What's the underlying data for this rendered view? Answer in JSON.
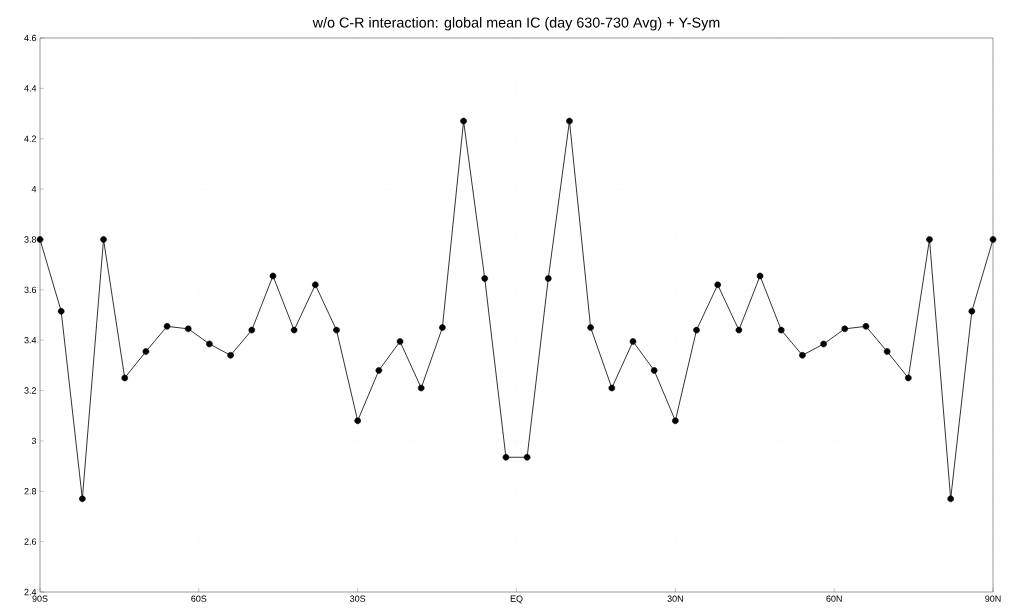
{
  "chart_data": {
    "type": "line",
    "title": "w/o C-R interaction: global mean IC (day 630-730 Avg) + Y-Sym",
    "x": [
      -90,
      -86,
      -82,
      -78,
      -74,
      -70,
      -66,
      -62,
      -58,
      -54,
      -50,
      -46,
      -42,
      -38,
      -34,
      -30,
      -26,
      -22,
      -18,
      -14,
      -10,
      -6,
      -2,
      2,
      6,
      10,
      14,
      18,
      22,
      26,
      30,
      34,
      38,
      42,
      46,
      50,
      54,
      58,
      62,
      66,
      70,
      74,
      78,
      82,
      86,
      90
    ],
    "values": [
      3.8,
      3.515,
      2.77,
      3.8,
      3.25,
      3.355,
      3.455,
      3.445,
      3.385,
      3.34,
      3.44,
      3.655,
      3.44,
      3.62,
      3.44,
      3.08,
      3.28,
      3.395,
      3.21,
      3.45,
      4.27,
      3.645,
      2.935,
      2.935,
      3.645,
      4.27,
      3.45,
      3.21,
      3.395,
      3.28,
      3.08,
      3.44,
      3.62,
      3.44,
      3.655,
      3.44,
      3.34,
      3.385,
      3.445,
      3.455,
      3.355,
      3.25,
      3.8,
      2.77,
      3.515,
      3.8
    ],
    "color": "#000000",
    "marker": "circle",
    "line_style": "solid",
    "grid": true,
    "xlim": [
      -90,
      90
    ],
    "xticks": [
      {
        "value": -90,
        "label": "90S"
      },
      {
        "value": -60,
        "label": "60S"
      },
      {
        "value": -30,
        "label": "30S"
      },
      {
        "value": 0,
        "label": "EQ"
      },
      {
        "value": 30,
        "label": "30N"
      },
      {
        "value": 60,
        "label": "60N"
      },
      {
        "value": 90,
        "label": "90N"
      }
    ],
    "ylim": [
      2.4,
      4.6
    ],
    "yticks": [
      2.4,
      2.6,
      2.8,
      3,
      3.2,
      3.4,
      3.6,
      3.8,
      4,
      4.2,
      4.4,
      4.6
    ]
  }
}
